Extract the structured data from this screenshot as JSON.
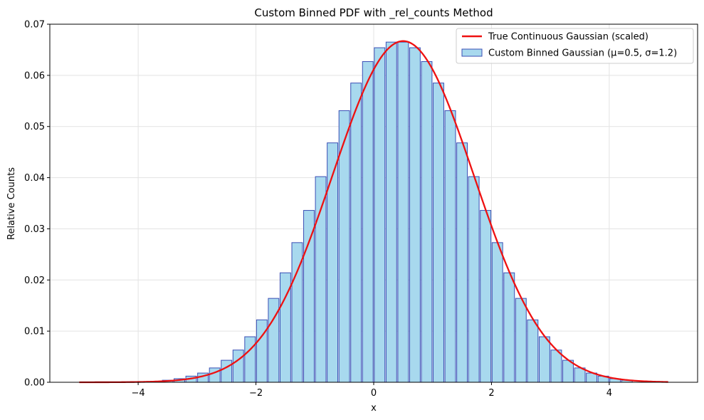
{
  "chart_data": {
    "type": "bar",
    "title": "Custom Binned PDF with _rel_counts Method",
    "xlabel": "x",
    "ylabel": "Relative Counts",
    "xlim": [
      -5.5,
      5.5
    ],
    "ylim": [
      0,
      0.07
    ],
    "x_ticks": [
      -4,
      -2,
      0,
      2,
      4
    ],
    "x_tick_labels": [
      "−4",
      "−2",
      "0",
      "2",
      "4"
    ],
    "y_ticks": [
      0.0,
      0.01,
      0.02,
      0.03,
      0.04,
      0.05,
      0.06,
      0.07
    ],
    "y_tick_labels": [
      "0.00",
      "0.01",
      "0.02",
      "0.03",
      "0.04",
      "0.05",
      "0.06",
      "0.07"
    ],
    "grid": true,
    "legend_position": "top-right",
    "bar_width": 0.18,
    "bars": {
      "name": "Custom Binned Gaussian (μ=0.5, σ=1.2)",
      "x": [
        -4.3,
        -4.1,
        -3.9,
        -3.7,
        -3.5,
        -3.3,
        -3.1,
        -2.9,
        -2.7,
        -2.5,
        -2.3,
        -2.1,
        -1.9,
        -1.7,
        -1.5,
        -1.3,
        -1.1,
        -0.9,
        -0.7,
        -0.5,
        -0.3,
        -0.1,
        0.1,
        0.3,
        0.5,
        0.7,
        0.9,
        1.1,
        1.3,
        1.5,
        1.7,
        1.9,
        2.1,
        2.3,
        2.5,
        2.7,
        2.9,
        3.1,
        3.3,
        3.5,
        3.7,
        3.9,
        4.1,
        4.3
      ],
      "values": [
        0.0,
        0.0001,
        0.0001,
        0.0002,
        0.0004,
        0.0007,
        0.0012,
        0.0018,
        0.0028,
        0.0043,
        0.0063,
        0.0089,
        0.0122,
        0.0164,
        0.0214,
        0.0273,
        0.0336,
        0.0402,
        0.0468,
        0.0531,
        0.0585,
        0.0627,
        0.0654,
        0.0665,
        0.0665,
        0.0654,
        0.0627,
        0.0585,
        0.0531,
        0.0468,
        0.0402,
        0.0336,
        0.0273,
        0.0214,
        0.0164,
        0.0122,
        0.0089,
        0.0063,
        0.0043,
        0.0028,
        0.0018,
        0.0012,
        0.0007,
        0.0004
      ],
      "fill": "#a8d9ee",
      "edge": "#3a4fb5"
    },
    "curve": {
      "name": "True Continuous Gaussian (scaled)",
      "mu": 0.5,
      "sigma": 1.2,
      "peak": 0.0667,
      "x_range": [
        -5,
        5
      ],
      "color": "#ee1111"
    }
  }
}
